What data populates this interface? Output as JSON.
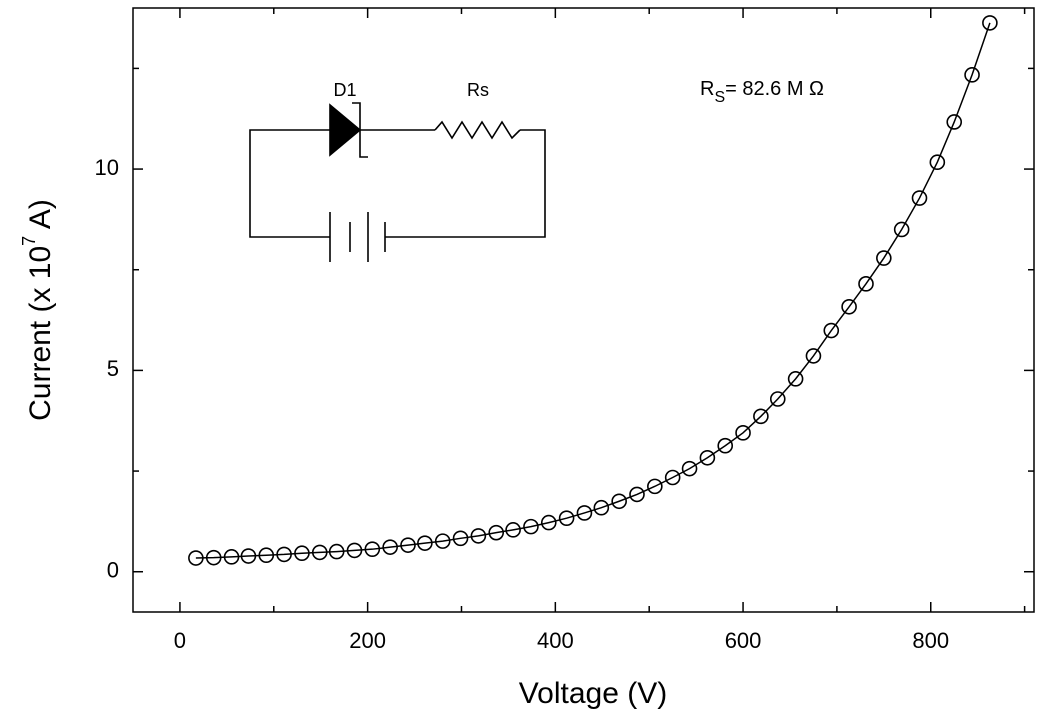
{
  "chart_data": {
    "type": "scatter",
    "x_label": "Voltage (V)",
    "y_label": {
      "text": "Current  (x 10",
      "superscript": "7",
      "suffix": " A)"
    },
    "annotation": {
      "text": "R",
      "subscript": "S",
      "suffix": "= 82.6 M Ω"
    },
    "circuit_labels": [
      "D1",
      "Rs"
    ],
    "x": [
      17,
      36,
      55,
      73,
      92,
      111,
      130,
      149,
      167,
      186,
      205,
      224,
      243,
      261,
      280,
      299,
      318,
      337,
      355,
      374,
      393,
      412,
      431,
      449,
      468,
      487,
      506,
      525,
      543,
      562,
      581,
      600,
      619,
      637,
      656,
      675,
      694,
      713,
      731,
      750,
      769,
      788,
      807,
      825,
      844,
      863
    ],
    "series": [
      {
        "color": "#000000",
        "values": [
          0.34,
          0.35,
          0.37,
          0.39,
          0.41,
          0.43,
          0.46,
          0.48,
          0.5,
          0.53,
          0.56,
          0.61,
          0.66,
          0.71,
          0.76,
          0.83,
          0.89,
          0.97,
          1.04,
          1.12,
          1.22,
          1.33,
          1.46,
          1.59,
          1.75,
          1.92,
          2.12,
          2.34,
          2.56,
          2.83,
          3.13,
          3.45,
          3.86,
          4.29,
          4.79,
          5.36,
          5.99,
          6.58,
          7.15,
          7.79,
          8.5,
          9.28,
          10.17,
          11.17,
          12.34,
          13.63
        ]
      }
    ],
    "xlim": [
      -50,
      910
    ],
    "ylim": [
      -1,
      14
    ],
    "xticks": [
      0,
      200,
      400,
      600,
      800
    ],
    "yticks": [
      0,
      5,
      10
    ],
    "xminor_ticks": [
      100,
      300,
      500,
      700,
      900
    ],
    "yminor_ticks": [
      2.5,
      7.5,
      12.5
    ]
  }
}
